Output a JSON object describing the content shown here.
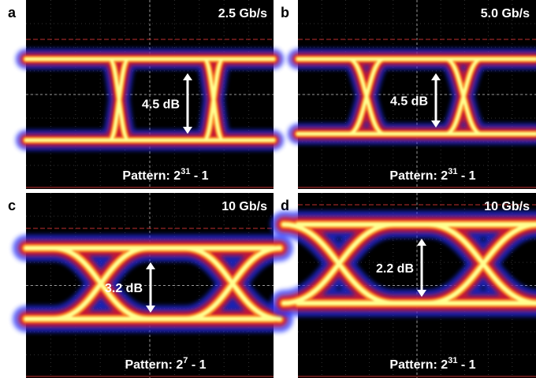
{
  "panels": [
    {
      "letter": "a",
      "rate": "2.5 Gb/s",
      "extinction": "4.5 dB",
      "pattern": {
        "base": "Pattern: 2",
        "exponent": "31",
        "suffix": " - 1"
      }
    },
    {
      "letter": "b",
      "rate": "5.0 Gb/s",
      "extinction": "4.5 dB",
      "pattern": {
        "base": "Pattern: 2",
        "exponent": "31",
        "suffix": " - 1"
      }
    },
    {
      "letter": "c",
      "rate": "10 Gb/s",
      "extinction": "3.2 dB",
      "pattern": {
        "base": "Pattern: 2",
        "exponent": "7",
        "suffix": " - 1"
      }
    },
    {
      "letter": "d",
      "rate": "10 Gb/s",
      "extinction": "2.2 dB",
      "pattern": {
        "base": "Pattern: 2",
        "exponent": "31",
        "suffix": " - 1"
      }
    }
  ]
}
